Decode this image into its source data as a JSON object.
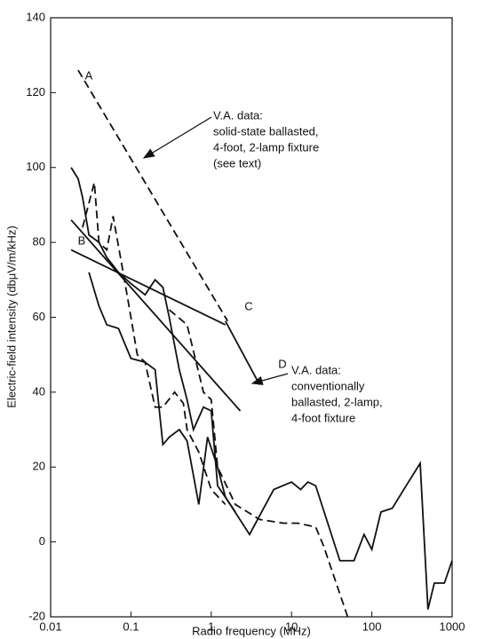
{
  "chart_data": {
    "type": "line",
    "xlabel": "Radio frequency (MHz)",
    "ylabel": "Electric-field intensity (dbμV/m/kHz)",
    "xscale": "log",
    "xlim": [
      0.01,
      1000
    ],
    "ylim": [
      -20,
      140
    ],
    "xticks": [
      0.01,
      0.1,
      1,
      10,
      100,
      1000
    ],
    "yticks": [
      -20,
      0,
      20,
      40,
      60,
      80,
      100,
      120,
      140
    ],
    "series": [
      {
        "color": "#111",
        "dash": true,
        "x": [
          0.022,
          1.6
        ],
        "values": [
          126,
          59
        ]
      },
      {
        "color": "#111",
        "dash": false,
        "x": [
          1.5,
          4
        ],
        "values": [
          59,
          42
        ]
      },
      {
        "color": "#111",
        "dash": false,
        "x": [
          0.018,
          1.5
        ],
        "values": [
          78,
          58
        ]
      },
      {
        "color": "#111",
        "dash": false,
        "x": [
          0.018,
          2.3
        ],
        "values": [
          86,
          35
        ]
      },
      {
        "color": "#111",
        "dash": false,
        "x": [
          0.018,
          0.022,
          0.025,
          0.03,
          0.04,
          0.05,
          0.07,
          0.1,
          0.15,
          0.2,
          0.25,
          0.3,
          0.4,
          0.5,
          0.6,
          0.8,
          1,
          1.2,
          2
        ],
        "values": [
          100,
          97,
          92,
          82,
          80,
          76,
          72,
          69,
          66,
          70,
          68,
          60,
          46,
          38,
          30,
          36,
          35,
          15,
          8
        ]
      },
      {
        "color": "#111",
        "dash": false,
        "x": [
          0.03,
          0.04,
          0.05,
          0.07,
          0.1,
          0.15,
          0.2,
          0.25,
          0.3,
          0.4,
          0.5,
          0.7,
          0.9,
          1.2,
          1.5,
          3,
          6,
          10,
          13,
          16,
          20,
          40,
          60,
          80,
          100,
          130,
          180,
          250,
          400,
          500,
          600,
          800,
          1000
        ],
        "values": [
          72,
          63,
          58,
          57,
          49,
          48,
          46,
          26,
          28,
          30,
          27,
          10,
          28,
          20,
          12,
          2,
          14,
          16,
          14,
          16,
          15,
          -5,
          -5,
          2,
          -2,
          8,
          9,
          14,
          21,
          -18,
          -11,
          -11,
          -5
        ]
      },
      {
        "color": "#111",
        "dash": true,
        "x": [
          0.025,
          0.035,
          0.04,
          0.05,
          0.06,
          0.08,
          0.1,
          0.12,
          0.15,
          0.2,
          0.25,
          0.35,
          0.45,
          0.5,
          0.7,
          1,
          1.5
        ],
        "values": [
          84,
          96,
          80,
          78,
          87,
          72,
          60,
          50,
          48,
          36,
          36,
          40,
          37,
          30,
          24,
          14,
          10
        ]
      },
      {
        "color": "#111",
        "dash": true,
        "x": [
          0.3,
          0.5,
          0.8,
          1,
          1.2,
          2,
          4,
          8,
          12,
          20,
          25,
          50
        ],
        "values": [
          62,
          58,
          40,
          38,
          20,
          10,
          6,
          5,
          5,
          4,
          -1,
          -20
        ]
      }
    ],
    "annotations": [
      {
        "text": "A"
      },
      {
        "text": "B"
      },
      {
        "text": "C"
      },
      {
        "text": "D"
      },
      {
        "lines": [
          "V.A. data:",
          "solid-state ballasted,",
          "4-foot, 2-lamp fixture",
          "(see text)"
        ]
      },
      {
        "lines": [
          "V.A. data:",
          "conventionally",
          "ballasted, 2-lamp,",
          "4-foot fixture"
        ]
      }
    ]
  }
}
